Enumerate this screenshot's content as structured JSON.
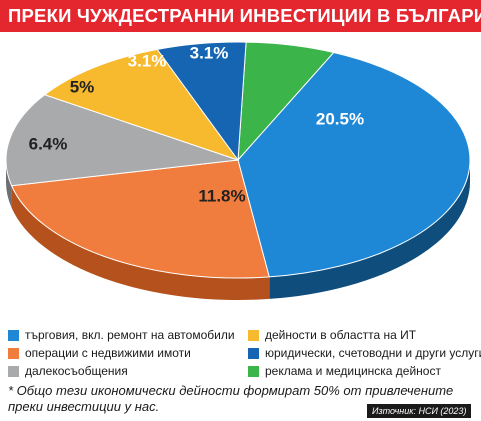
{
  "title": "ПРЕКИ ЧУЖДЕСТРАННИ ИНВЕСТИЦИИ В БЪЛГАРИЯ",
  "chart_data": {
    "type": "pie",
    "title": "ПРЕКИ ЧУЖДЕСТРАННИ ИНВЕСТИЦИИ В БЪЛГАРИЯ",
    "style": "3d",
    "unit": "%",
    "slices": [
      {
        "label": "търговия, вкл. ремонт на автомобили",
        "value": 20.5,
        "value_label": "20.5%",
        "color": "#1e88d6",
        "side_color": "#0f4d7d",
        "text_color": "#ffffff"
      },
      {
        "label": "операции с недвижими имоти",
        "value": 11.8,
        "value_label": "11.8%",
        "color": "#f07d3e",
        "side_color": "#b5511c",
        "text_color": "#222222"
      },
      {
        "label": "далекосъобщения",
        "value": 6.4,
        "value_label": "6.4%",
        "color": "#a9aaac",
        "side_color": "#6e6f72",
        "text_color": "#222222"
      },
      {
        "label": "дейности в областта на ИТ",
        "value": 5,
        "value_label": "5%",
        "color": "#f7b92d",
        "side_color": "#b88312",
        "text_color": "#222222"
      },
      {
        "label": "юридически, счетоводни и други услуги",
        "value": 3.1,
        "value_label": "3.1%",
        "color": "#1565b3",
        "side_color": "#0b3e72",
        "text_color": "#ffffff"
      },
      {
        "label": "реклама и медицинска дейност",
        "value": 3.1,
        "value_label": "3.1%",
        "color": "#3bb54a",
        "side_color": "#237a2e",
        "text_color": "#ffffff"
      }
    ]
  },
  "legend": [
    {
      "label": "търговия, вкл. ремонт на автомобили",
      "color": "#1e88d6"
    },
    {
      "label": "дейности в областта на ИТ",
      "color": "#f7b92d"
    },
    {
      "label": "операции с недвижими имоти",
      "color": "#f07d3e"
    },
    {
      "label": "юридически, счетоводни и други услуги",
      "color": "#1565b3"
    },
    {
      "label": "далекосъобщения",
      "color": "#a9aaac"
    },
    {
      "label": "реклама и медицинска дейност",
      "color": "#3bb54a"
    }
  ],
  "footnote": "* Общо тези икономически дейности формират 50% от привлечените преки инвестиции у нас.",
  "source": "Източник: НСИ (2023)"
}
